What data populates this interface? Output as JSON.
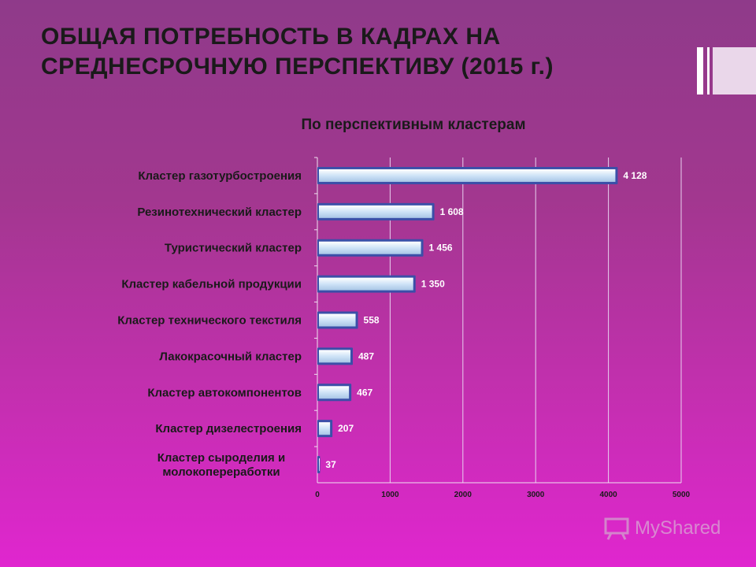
{
  "slide": {
    "title_lines": [
      "ОБЩАЯ ПОТРЕБНОСТЬ В КАДРАХ НА",
      "СРЕДНЕСРОЧНУЮ ПЕРСПЕКТИВУ (2015 г.)"
    ],
    "watermark": "MyShared"
  },
  "colors": {
    "bar_fill": "#cfe3f7",
    "bar_edge": "#3b4fa8",
    "grid": "#e8d0ef"
  },
  "chart_data": {
    "type": "bar",
    "orientation": "horizontal",
    "title": "По перспективным кластерам",
    "categories": [
      "Кластер газотурбостроения",
      "Резинотехнический кластер",
      "Туристический кластер",
      "Кластер кабельной продукции",
      "Кластер технического текстиля",
      "Лакокрасочный кластер",
      "Кластер автокомпонентов",
      "Кластер дизелестроения",
      "Кластер сыроделия и молокопереработки"
    ],
    "category_label_lines": [
      [
        "Кластер газотурбостроения"
      ],
      [
        "Резинотехнический кластер"
      ],
      [
        "Туристический кластер"
      ],
      [
        "Кластер кабельной продукции"
      ],
      [
        "Кластер технического текстиля"
      ],
      [
        "Лакокрасочный кластер"
      ],
      [
        "Кластер автокомпонентов"
      ],
      [
        "Кластер дизелестроения"
      ],
      [
        "Кластер сыроделия и",
        "молокопереработки"
      ]
    ],
    "values": [
      4128,
      1608,
      1456,
      1350,
      558,
      487,
      467,
      207,
      37
    ],
    "value_labels": [
      "4 128",
      "1 608",
      "1 456",
      "1 350",
      "558",
      "487",
      "467",
      "207",
      "37"
    ],
    "xlim": [
      0,
      5000
    ],
    "xticks": [
      0,
      1000,
      2000,
      3000,
      4000,
      5000
    ],
    "grid": true,
    "legend": "none"
  }
}
